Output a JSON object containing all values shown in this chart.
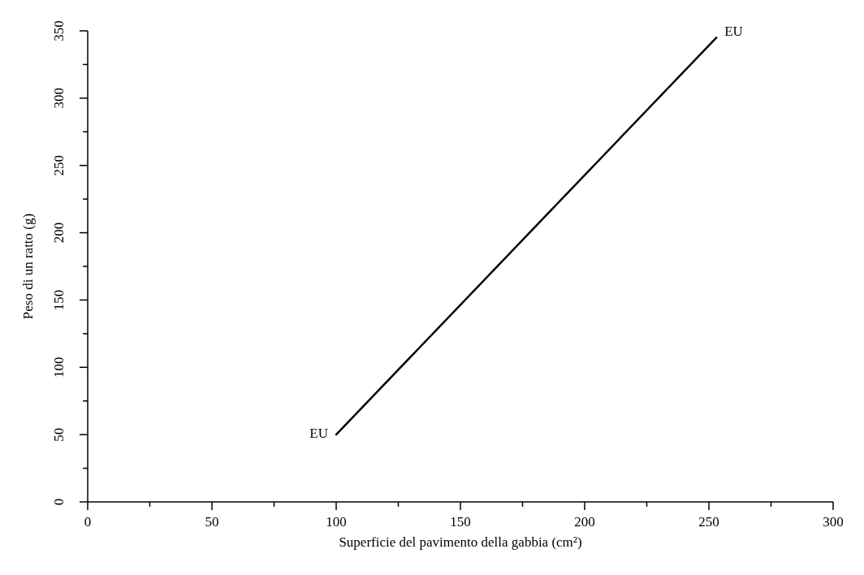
{
  "chart_data": {
    "type": "line",
    "xlabel": "Superficie del pavimento della gabbia (cm²)",
    "ylabel": "Peso di un ratto (g)",
    "x": [
      100,
      253
    ],
    "series": [
      {
        "color": "#000000",
        "values": [
          50,
          345
        ]
      }
    ],
    "xlim": [
      0,
      300
    ],
    "ylim": [
      0,
      350
    ],
    "xticks": [
      0,
      {
        "value": 25,
        "label": null
      },
      50,
      {
        "value": 75,
        "label": null
      },
      100,
      {
        "value": 125,
        "label": null
      },
      150,
      {
        "value": 175,
        "label": null
      },
      200,
      {
        "value": 225,
        "label": null
      },
      250,
      {
        "value": 275,
        "label": null
      },
      300
    ],
    "yticks": [
      0,
      {
        "value": 25,
        "label": null
      },
      50,
      {
        "value": 75,
        "label": null
      },
      100,
      {
        "value": 125,
        "label": null
      },
      150,
      {
        "value": 175,
        "label": null
      },
      200,
      {
        "value": 225,
        "label": null
      },
      250,
      {
        "value": 275,
        "label": null
      },
      300,
      {
        "value": 325,
        "label": null
      },
      350
    ],
    "annotations": [
      {
        "text": "EU",
        "x": 100,
        "y": 50
      },
      {
        "text": "EU",
        "x": 253,
        "y": 345
      }
    ],
    "marker": "none",
    "line_style": "solid"
  }
}
